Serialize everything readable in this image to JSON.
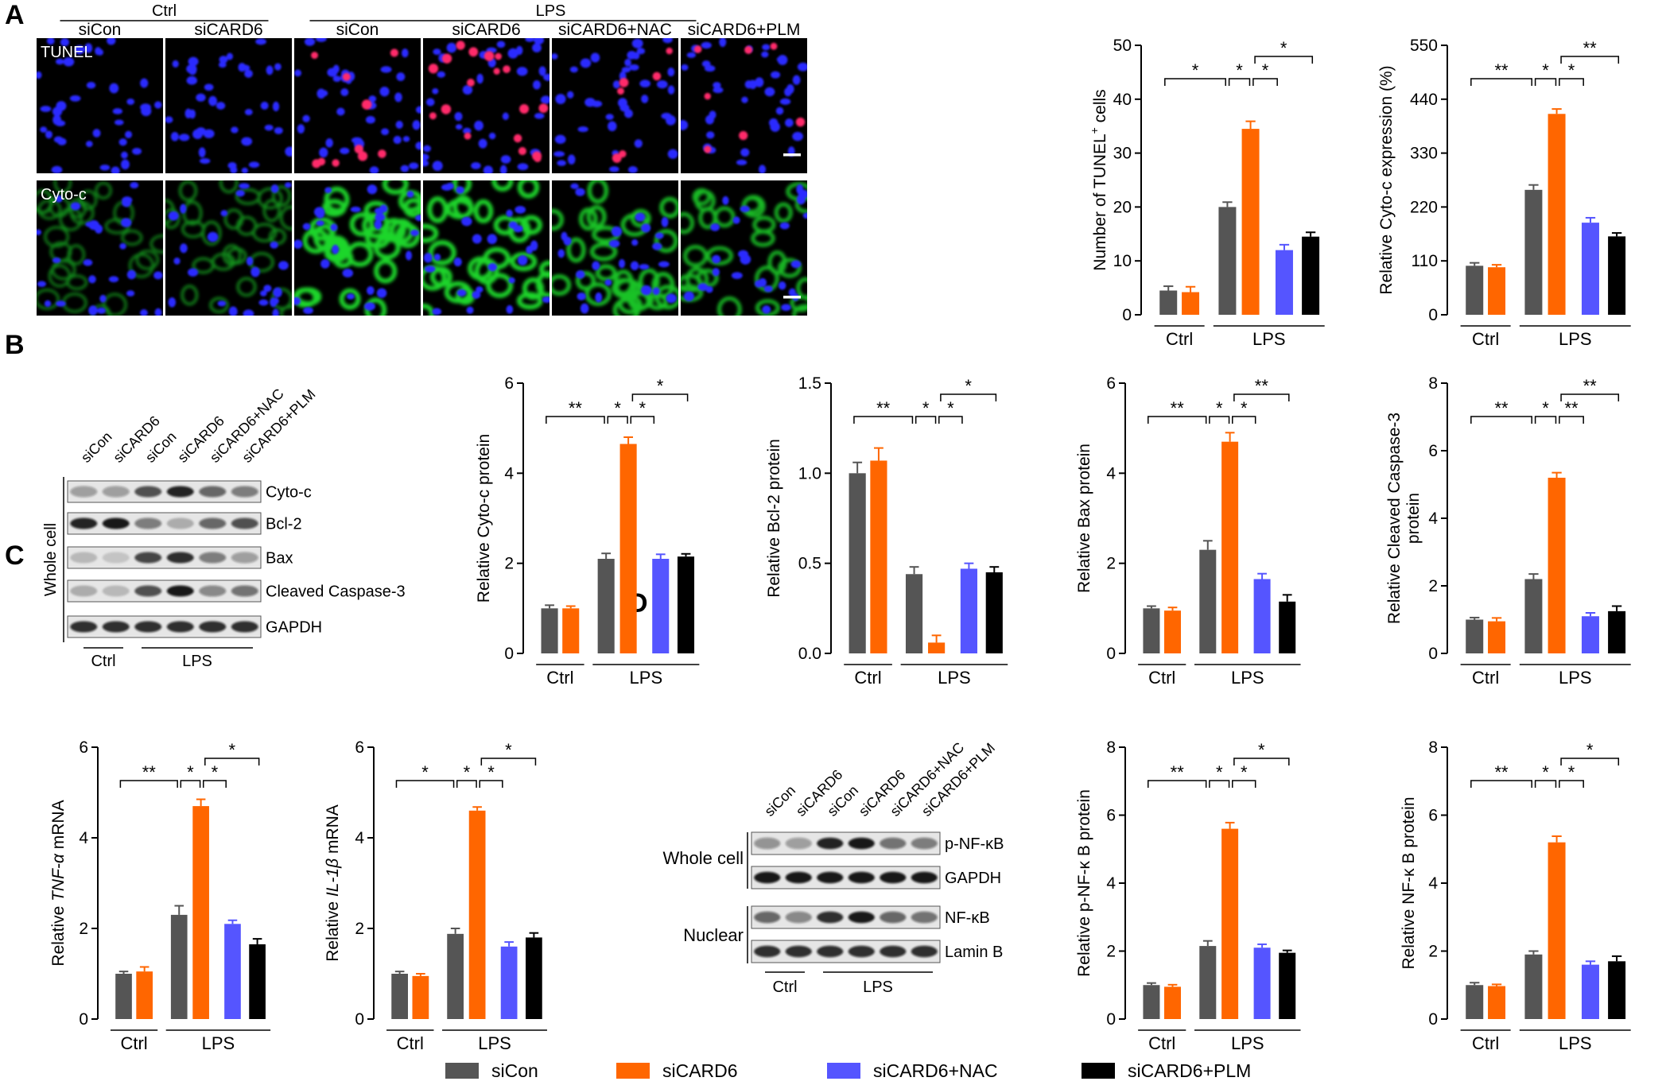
{
  "colors": {
    "siCon": "#555555",
    "siCARD6": "#ff6600",
    "siCARD6+NAC": "#5555ff",
    "siCARD6+PLM": "#000000"
  },
  "panels": {
    "A": "A",
    "B": "B",
    "C": "C",
    "D": "D"
  },
  "microscopy": {
    "ctrl_label": "Ctrl",
    "lps_label": "LPS",
    "columns": [
      "siCon",
      "siCARD6",
      "siCon",
      "siCARD6",
      "siCARD6+NAC",
      "siCARD6+PLM"
    ],
    "rows": [
      "TUNEL",
      "Cyto-c"
    ]
  },
  "blot_B": {
    "lanes": [
      "siCon",
      "siCARD6",
      "siCon",
      "siCARD6",
      "siCARD6+NAC",
      "siCARD6+PLM"
    ],
    "bands": [
      "Cyto-c",
      "Bcl-2",
      "Bax",
      "Cleaved Caspase-3",
      "GAPDH"
    ],
    "side_label": "Whole cell",
    "ctrl_label": "Ctrl",
    "lps_label": "LPS"
  },
  "blot_D": {
    "lanes": [
      "siCon",
      "siCARD6",
      "siCon",
      "siCARD6",
      "siCARD6+NAC",
      "siCARD6+PLM"
    ],
    "bands": [
      "p-NF-κB",
      "GAPDH",
      "NF-κB",
      "Lamin B"
    ],
    "groups": [
      "Whole cell",
      "Nuclear"
    ],
    "ctrl_label": "Ctrl",
    "lps_label": "LPS"
  },
  "legend": [
    "siCon",
    "siCARD6",
    "siCARD6+NAC",
    "siCARD6+PLM"
  ],
  "chart_data": [
    {
      "id": "tunel",
      "type": "bar",
      "ylabel": "Number of TUNEL⁺ cells",
      "ylim": [
        0,
        50
      ],
      "yticks": [
        0,
        10,
        20,
        30,
        40,
        50
      ],
      "groups": [
        "Ctrl",
        "LPS"
      ],
      "series": [
        "siCon",
        "siCARD6",
        "siCon",
        "siCARD6",
        "siCARD6+NAC",
        "siCARD6+PLM"
      ],
      "values": [
        4.5,
        4.2,
        20,
        34.5,
        12,
        14.5
      ],
      "errors": [
        0.8,
        1.0,
        0.9,
        1.4,
        1.0,
        0.8
      ],
      "sig": [
        {
          "from": 0,
          "to": 2,
          "label": "*",
          "level": 0
        },
        {
          "from": 2,
          "to": 3,
          "label": "*",
          "level": 0
        },
        {
          "from": 3,
          "to": 4,
          "label": "*",
          "level": 0
        },
        {
          "from": 3,
          "to": 5,
          "label": "*",
          "level": 1
        }
      ]
    },
    {
      "id": "cytoc_expr",
      "type": "bar",
      "ylabel": "Relative Cyto-c expression (%)",
      "ylim": [
        0,
        550
      ],
      "yticks": [
        0,
        110,
        220,
        330,
        440,
        550
      ],
      "groups": [
        "Ctrl",
        "LPS"
      ],
      "series": [
        "siCon",
        "siCARD6",
        "siCon",
        "siCARD6",
        "siCARD6+NAC",
        "siCARD6+PLM"
      ],
      "values": [
        100,
        97,
        255,
        410,
        188,
        160
      ],
      "errors": [
        6,
        5,
        10,
        10,
        10,
        7
      ],
      "sig": [
        {
          "from": 0,
          "to": 2,
          "label": "**",
          "level": 0
        },
        {
          "from": 2,
          "to": 3,
          "label": "*",
          "level": 0
        },
        {
          "from": 3,
          "to": 4,
          "label": "*",
          "level": 0
        },
        {
          "from": 3,
          "to": 5,
          "label": "**",
          "level": 1
        }
      ]
    },
    {
      "id": "cytoc_prot",
      "type": "bar",
      "ylabel": "Relative Cyto-c protein",
      "ylim": [
        0,
        6
      ],
      "yticks": [
        0,
        2,
        4,
        6
      ],
      "groups": [
        "Ctrl",
        "LPS"
      ],
      "series": [
        "siCon",
        "siCARD6",
        "siCon",
        "siCARD6",
        "siCARD6+NAC",
        "siCARD6+PLM"
      ],
      "values": [
        1.0,
        1.0,
        2.1,
        4.65,
        2.1,
        2.15
      ],
      "errors": [
        0.07,
        0.05,
        0.12,
        0.15,
        0.1,
        0.06
      ],
      "sig": [
        {
          "from": 0,
          "to": 2,
          "label": "**",
          "level": 0
        },
        {
          "from": 2,
          "to": 3,
          "label": "*",
          "level": 0
        },
        {
          "from": 3,
          "to": 4,
          "label": "*",
          "level": 0
        },
        {
          "from": 3,
          "to": 5,
          "label": "*",
          "level": 1
        }
      ]
    },
    {
      "id": "bcl2",
      "type": "bar",
      "ylabel": "Relative Bcl-2 protein",
      "ylim": [
        0,
        1.5
      ],
      "yticks": [
        0,
        0.5,
        1.0,
        1.5
      ],
      "yticklabels": [
        "0.0",
        "0.5",
        "1.0",
        "1.5"
      ],
      "groups": [
        "Ctrl",
        "LPS"
      ],
      "series": [
        "siCon",
        "siCARD6",
        "siCon",
        "siCARD6",
        "siCARD6+NAC",
        "siCARD6+PLM"
      ],
      "values": [
        1.0,
        1.07,
        0.44,
        0.06,
        0.47,
        0.45
      ],
      "errors": [
        0.06,
        0.07,
        0.04,
        0.04,
        0.03,
        0.03
      ],
      "sig": [
        {
          "from": 0,
          "to": 2,
          "label": "**",
          "level": 0
        },
        {
          "from": 2,
          "to": 3,
          "label": "*",
          "level": 0
        },
        {
          "from": 3,
          "to": 4,
          "label": "*",
          "level": 0
        },
        {
          "from": 3,
          "to": 5,
          "label": "*",
          "level": 1
        }
      ]
    },
    {
      "id": "bax",
      "type": "bar",
      "ylabel": "Relative Bax protein",
      "ylim": [
        0,
        6
      ],
      "yticks": [
        0,
        2,
        4,
        6
      ],
      "groups": [
        "Ctrl",
        "LPS"
      ],
      "series": [
        "siCon",
        "siCARD6",
        "siCon",
        "siCARD6",
        "siCARD6+NAC",
        "siCARD6+PLM"
      ],
      "values": [
        1.0,
        0.95,
        2.3,
        4.7,
        1.65,
        1.15
      ],
      "errors": [
        0.05,
        0.07,
        0.2,
        0.2,
        0.12,
        0.15
      ],
      "sig": [
        {
          "from": 0,
          "to": 2,
          "label": "**",
          "level": 0
        },
        {
          "from": 2,
          "to": 3,
          "label": "*",
          "level": 0
        },
        {
          "from": 3,
          "to": 4,
          "label": "*",
          "level": 0
        },
        {
          "from": 3,
          "to": 5,
          "label": "**",
          "level": 1
        }
      ]
    },
    {
      "id": "casp3",
      "type": "bar",
      "ylabel": "Relative Cleaved Caspase-3 protein",
      "ylim": [
        0,
        8
      ],
      "yticks": [
        0,
        2,
        4,
        6,
        8
      ],
      "groups": [
        "Ctrl",
        "LPS"
      ],
      "series": [
        "siCon",
        "siCARD6",
        "siCon",
        "siCARD6",
        "siCARD6+NAC",
        "siCARD6+PLM"
      ],
      "values": [
        1.0,
        0.95,
        2.2,
        5.2,
        1.1,
        1.25
      ],
      "errors": [
        0.06,
        0.1,
        0.15,
        0.15,
        0.1,
        0.15
      ],
      "sig": [
        {
          "from": 0,
          "to": 2,
          "label": "**",
          "level": 0
        },
        {
          "from": 2,
          "to": 3,
          "label": "*",
          "level": 0
        },
        {
          "from": 3,
          "to": 4,
          "label": "**",
          "level": 0
        },
        {
          "from": 3,
          "to": 5,
          "label": "**",
          "level": 1
        }
      ]
    },
    {
      "id": "tnf",
      "type": "bar",
      "ylabel": "Relative TNF-α mRNA",
      "ylabel_parts": [
        {
          "t": "Relative ",
          "i": false
        },
        {
          "t": "TNF-α",
          "i": true
        },
        {
          "t": " mRNA",
          "i": false
        }
      ],
      "ylim": [
        0,
        6
      ],
      "yticks": [
        0,
        2,
        4,
        6
      ],
      "groups": [
        "Ctrl",
        "LPS"
      ],
      "series": [
        "siCon",
        "siCARD6",
        "siCon",
        "siCARD6",
        "siCARD6+NAC",
        "siCARD6+PLM"
      ],
      "values": [
        1.0,
        1.05,
        2.3,
        4.7,
        2.1,
        1.65
      ],
      "errors": [
        0.05,
        0.1,
        0.2,
        0.15,
        0.08,
        0.12
      ],
      "sig": [
        {
          "from": 0,
          "to": 2,
          "label": "**",
          "level": 0
        },
        {
          "from": 2,
          "to": 3,
          "label": "*",
          "level": 0
        },
        {
          "from": 3,
          "to": 4,
          "label": "*",
          "level": 0
        },
        {
          "from": 3,
          "to": 5,
          "label": "*",
          "level": 1
        }
      ]
    },
    {
      "id": "il1b",
      "type": "bar",
      "ylabel": "Relative IL-1β mRNA",
      "ylabel_parts": [
        {
          "t": "Relative ",
          "i": false
        },
        {
          "t": "IL-1β",
          "i": true
        },
        {
          "t": " mRNA",
          "i": false
        }
      ],
      "ylim": [
        0,
        6
      ],
      "yticks": [
        0,
        2,
        4,
        6
      ],
      "groups": [
        "Ctrl",
        "LPS"
      ],
      "series": [
        "siCon",
        "siCARD6",
        "siCon",
        "siCARD6",
        "siCARD6+NAC",
        "siCARD6+PLM"
      ],
      "values": [
        1.0,
        0.95,
        1.88,
        4.6,
        1.6,
        1.8
      ],
      "errors": [
        0.05,
        0.05,
        0.12,
        0.08,
        0.1,
        0.1
      ],
      "sig": [
        {
          "from": 0,
          "to": 2,
          "label": "*",
          "level": 0
        },
        {
          "from": 2,
          "to": 3,
          "label": "*",
          "level": 0
        },
        {
          "from": 3,
          "to": 4,
          "label": "*",
          "level": 0
        },
        {
          "from": 3,
          "to": 5,
          "label": "*",
          "level": 1
        }
      ]
    },
    {
      "id": "pnfkb",
      "type": "bar",
      "ylabel": "Relative p-NF-κ B protein",
      "ylim": [
        0,
        8
      ],
      "yticks": [
        0,
        2,
        4,
        6,
        8
      ],
      "groups": [
        "Ctrl",
        "LPS"
      ],
      "series": [
        "siCon",
        "siCARD6",
        "siCon",
        "siCARD6",
        "siCARD6+NAC",
        "siCARD6+PLM"
      ],
      "values": [
        1.0,
        0.95,
        2.15,
        5.6,
        2.1,
        1.95
      ],
      "errors": [
        0.06,
        0.06,
        0.15,
        0.18,
        0.1,
        0.07
      ],
      "sig": [
        {
          "from": 0,
          "to": 2,
          "label": "**",
          "level": 0
        },
        {
          "from": 2,
          "to": 3,
          "label": "*",
          "level": 0
        },
        {
          "from": 3,
          "to": 4,
          "label": "*",
          "level": 0
        },
        {
          "from": 3,
          "to": 5,
          "label": "*",
          "level": 1
        }
      ]
    },
    {
      "id": "nfkb",
      "type": "bar",
      "ylabel": "Relative NF-κ B protein",
      "ylim": [
        0,
        8
      ],
      "yticks": [
        0,
        2,
        4,
        6,
        8
      ],
      "groups": [
        "Ctrl",
        "LPS"
      ],
      "series": [
        "siCon",
        "siCARD6",
        "siCon",
        "siCARD6",
        "siCARD6+NAC",
        "siCARD6+PLM"
      ],
      "values": [
        1.0,
        0.97,
        1.9,
        5.2,
        1.6,
        1.7
      ],
      "errors": [
        0.07,
        0.05,
        0.1,
        0.18,
        0.1,
        0.15
      ],
      "sig": [
        {
          "from": 0,
          "to": 2,
          "label": "**",
          "level": 0
        },
        {
          "from": 2,
          "to": 3,
          "label": "*",
          "level": 0
        },
        {
          "from": 3,
          "to": 4,
          "label": "*",
          "level": 0
        },
        {
          "from": 3,
          "to": 5,
          "label": "*",
          "level": 1
        }
      ]
    }
  ]
}
